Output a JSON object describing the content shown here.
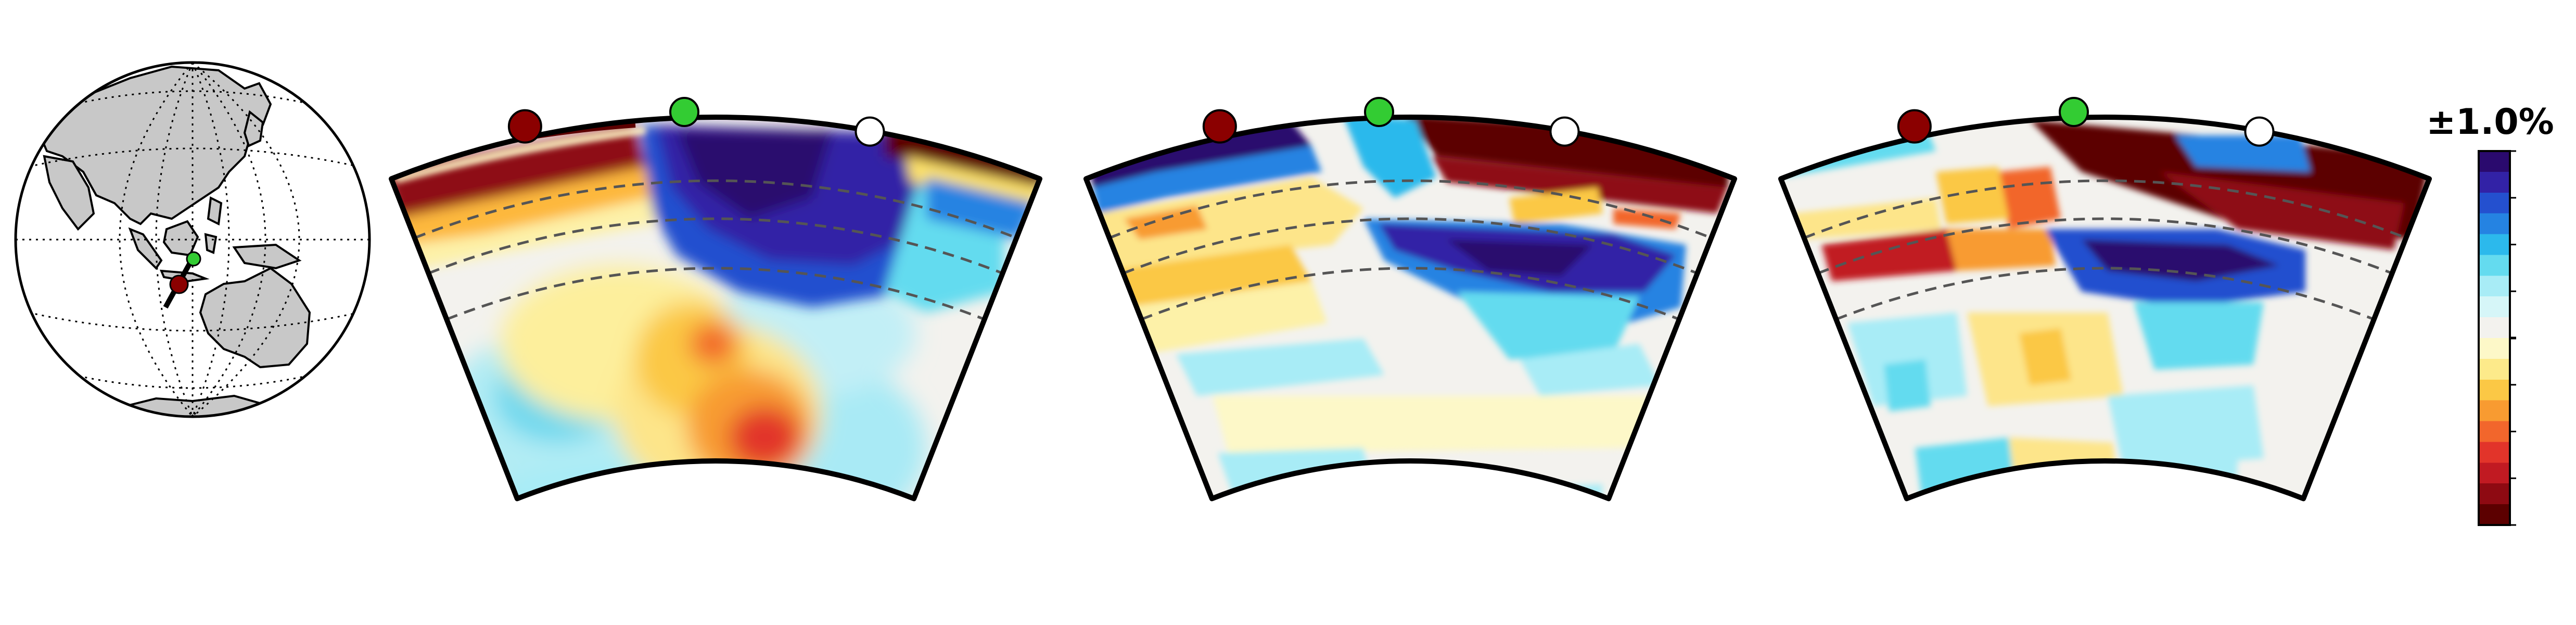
{
  "colorbar": {
    "label": "±1.0%",
    "colors": [
      "#5c0000",
      "#8e0a12",
      "#c11a22",
      "#e2342a",
      "#f2662c",
      "#f89b31",
      "#fbc845",
      "#fdea8a",
      "#fdf8c8",
      "#f3f2ee",
      "#d6f6f8",
      "#a8ecf6",
      "#64dbef",
      "#2cb9ec",
      "#2583e2",
      "#2450cf",
      "#3222a6",
      "#2a0a6e"
    ]
  },
  "globe": {
    "grid_color": "#000000",
    "land_color": "#c8c8c8",
    "profile_markers": [
      {
        "name": "end-marker",
        "color": "#8b0000"
      },
      {
        "name": "mid-marker",
        "color": "#33cc33"
      }
    ]
  },
  "panel_markers": [
    {
      "name": "start-marker",
      "color": "#8b0000"
    },
    {
      "name": "middle-marker",
      "color": "#33cc33"
    },
    {
      "name": "end-marker",
      "color": "#ffffff"
    }
  ],
  "colors": {
    "outline": "#000000",
    "dashed": "#555555",
    "background_fill": "#f3f2ee"
  }
}
